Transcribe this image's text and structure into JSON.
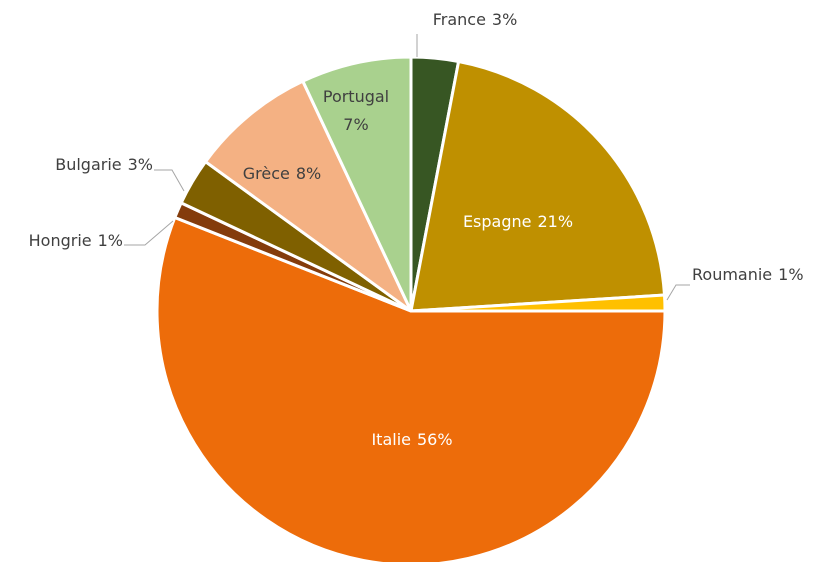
{
  "chart_data": {
    "type": "pie",
    "categories": [
      "France",
      "Espagne",
      "Roumanie",
      "Italie",
      "Hongrie",
      "Bulgarie",
      "Grèce",
      "Portugal"
    ],
    "values": [
      3,
      21,
      1,
      56,
      1,
      3,
      8,
      7
    ],
    "value_labels": [
      "3%",
      "21%",
      "1%",
      "56%",
      "1%",
      "3%",
      "8%",
      "7%"
    ],
    "colors": [
      "#375623",
      "#bf9000",
      "#ffc000",
      "#ed6c0a",
      "#843c0c",
      "#7f6000",
      "#f4b183",
      "#a9d18e"
    ]
  }
}
